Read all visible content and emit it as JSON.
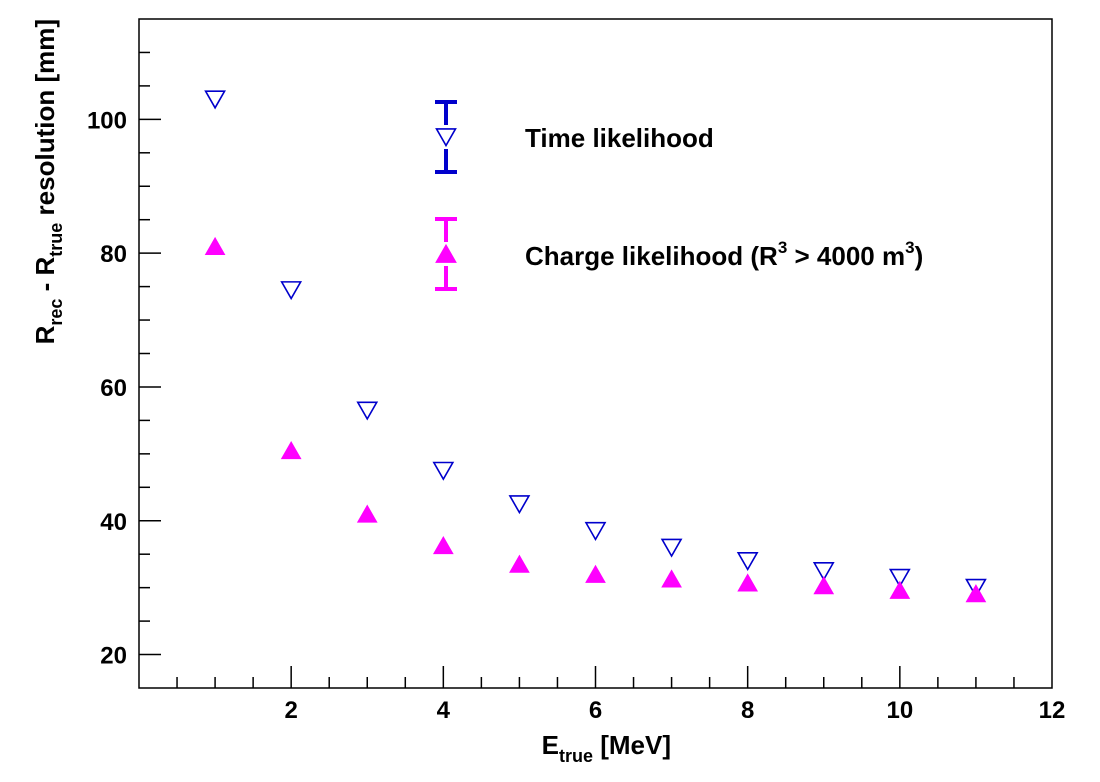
{
  "chart_data": {
    "type": "scatter",
    "title": "",
    "xlabel": {
      "main": "E",
      "sub": "true",
      "unit": " [MeV]"
    },
    "ylabel": {
      "main1": "R",
      "sub1": "rec",
      "mid": " - R",
      "sub2": "true",
      "rest": " resolution [mm]"
    },
    "xlim": [
      0,
      12
    ],
    "ylim": [
      15,
      115
    ],
    "x_ticks": [
      2,
      4,
      6,
      8,
      10,
      12
    ],
    "y_ticks": [
      20,
      40,
      60,
      80,
      100
    ],
    "x_tick_labels": [
      "2",
      "4",
      "6",
      "8",
      "10",
      "12"
    ],
    "y_tick_labels": [
      "20",
      "40",
      "60",
      "80",
      "100"
    ],
    "grid": false,
    "legend_placement": "top-center",
    "series": [
      {
        "name": "Time likelihood",
        "marker": "open-triangle-down",
        "color": "#0000cc",
        "x": [
          1,
          2,
          3,
          4,
          5,
          6,
          7,
          8,
          9,
          10,
          11
        ],
        "y": [
          103,
          74.5,
          56.5,
          47.5,
          42.5,
          38.5,
          36,
          34,
          32.5,
          31.5,
          30
        ]
      },
      {
        "name_parts": {
          "main": "Charge likelihood (R",
          "sup1": "3",
          "mid": " > 4000 m",
          "sup2": "3",
          "end": ")"
        },
        "marker": "filled-triangle-up",
        "color": "#ff00ff",
        "x": [
          1,
          2,
          3,
          4,
          5,
          6,
          7,
          8,
          9,
          10,
          11
        ],
        "y": [
          81,
          50.5,
          41,
          36.3,
          33.5,
          32,
          31.3,
          30.7,
          30.3,
          29.6,
          29.1
        ]
      }
    ]
  }
}
